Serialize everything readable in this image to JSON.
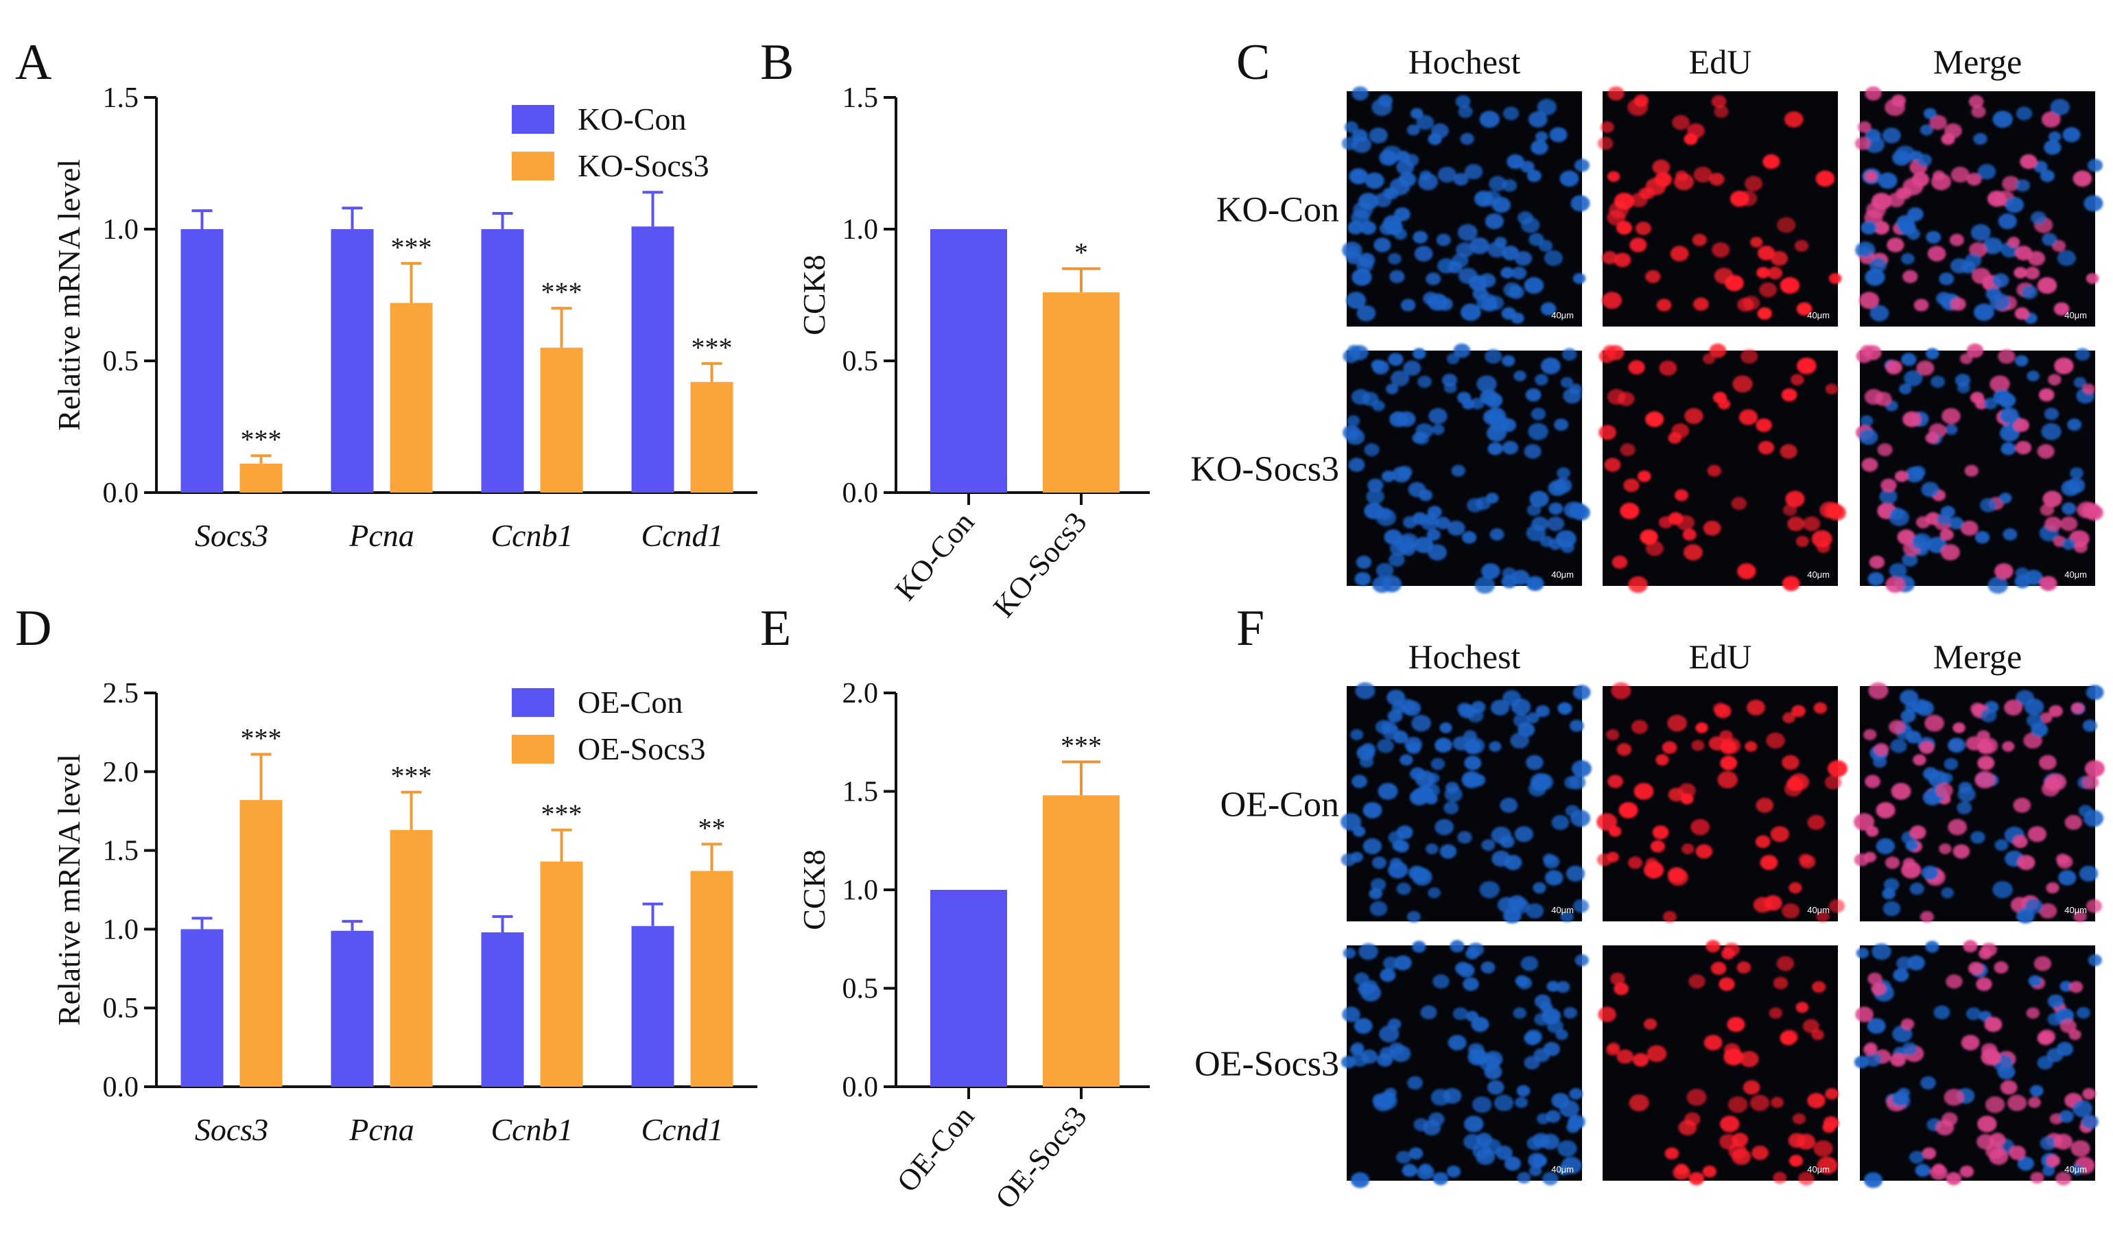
{
  "colors": {
    "con": "#5a55f2",
    "treat": "#fba43a",
    "axis": "#111111",
    "nuclei_blue": "#1d64c8",
    "edu_red": "#ff1f2c",
    "merge_pink": "#e0468e"
  },
  "panels": {
    "A": "A",
    "B": "B",
    "C": "C",
    "D": "D",
    "E": "E",
    "F": "F"
  },
  "chart_data": [
    {
      "panel": "A",
      "type": "bar",
      "title": "",
      "xlabel": "",
      "ylabel": "Relative  mRNA level",
      "ylim": [
        0,
        1.5
      ],
      "yticks": [
        "0.0",
        "0.5",
        "1.0",
        "1.5"
      ],
      "categories": [
        "Socs3",
        "Pcna",
        "Ccnb1",
        "Ccnd1"
      ],
      "categories_italic": true,
      "series": [
        {
          "name": "KO-Con",
          "color": "#5a55f2",
          "values": [
            1.0,
            1.0,
            1.0,
            1.01
          ],
          "errors": [
            0.07,
            0.08,
            0.06,
            0.13
          ]
        },
        {
          "name": "KO-Socs3",
          "color": "#fba43a",
          "values": [
            0.11,
            0.72,
            0.55,
            0.42
          ],
          "errors": [
            0.03,
            0.15,
            0.15,
            0.07
          ],
          "significance": [
            "***",
            "***",
            "***",
            "***"
          ]
        }
      ],
      "legend": "top-right"
    },
    {
      "panel": "B",
      "type": "bar",
      "title": "",
      "xlabel": "",
      "ylabel": "CCK8",
      "ylim": [
        0,
        1.5
      ],
      "yticks": [
        "0.0",
        "0.5",
        "1.0",
        "1.5"
      ],
      "categories": [
        "KO-Con",
        "KO-Socs3"
      ],
      "values": [
        1.0,
        0.76
      ],
      "errors": [
        0,
        0.09
      ],
      "bar_colors": [
        "#5a55f2",
        "#fba43a"
      ],
      "significance": [
        "",
        "*"
      ]
    },
    {
      "panel": "D",
      "type": "bar",
      "title": "",
      "xlabel": "",
      "ylabel": "Relative  mRNA level",
      "ylim": [
        0,
        2.5
      ],
      "yticks": [
        "0.0",
        "0.5",
        "1.0",
        "1.5",
        "2.0",
        "2.5"
      ],
      "categories": [
        "Socs3",
        "Pcna",
        "Ccnb1",
        "Ccnd1"
      ],
      "categories_italic": true,
      "series": [
        {
          "name": "OE-Con",
          "color": "#5a55f2",
          "values": [
            1.0,
            0.99,
            0.98,
            1.02
          ],
          "errors": [
            0.07,
            0.06,
            0.1,
            0.14
          ]
        },
        {
          "name": "OE-Socs3",
          "color": "#fba43a",
          "values": [
            1.82,
            1.63,
            1.43,
            1.37
          ],
          "errors": [
            0.29,
            0.24,
            0.2,
            0.17
          ],
          "significance": [
            "***",
            "***",
            "***",
            "**"
          ]
        }
      ],
      "legend": "top-right"
    },
    {
      "panel": "E",
      "type": "bar",
      "title": "",
      "xlabel": "",
      "ylabel": "CCK8",
      "ylim": [
        0,
        2.0
      ],
      "yticks": [
        "0.0",
        "0.5",
        "1.0",
        "1.5",
        "2.0"
      ],
      "categories": [
        "OE-Con",
        "OE-Socs3"
      ],
      "values": [
        1.0,
        1.48
      ],
      "errors": [
        0,
        0.17
      ],
      "bar_colors": [
        "#5a55f2",
        "#fba43a"
      ],
      "significance": [
        "",
        "***"
      ]
    }
  ],
  "micrographs": {
    "C": {
      "columns": [
        "Hochest",
        "EdU",
        "Merge"
      ],
      "rows": [
        "KO-Con",
        "KO-Socs3"
      ],
      "scale_bar": "40μm"
    },
    "F": {
      "columns": [
        "Hochest",
        "EdU",
        "Merge"
      ],
      "rows": [
        "OE-Con",
        "OE-Socs3"
      ],
      "scale_bar": "40μm"
    }
  }
}
